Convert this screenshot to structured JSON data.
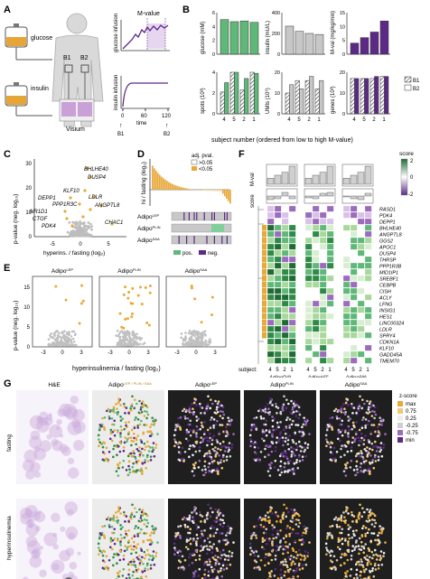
{
  "panel_letters": [
    "A",
    "B",
    "C",
    "D",
    "E",
    "F",
    "G"
  ],
  "colors": {
    "orange": "#e8a93a",
    "green": "#5fb878",
    "grey": "#c7c7c7",
    "purple": "#5c2a86",
    "light_purple": "#b98dd3",
    "light_green": "#cfe9c9",
    "dark_green": "#1f6b34",
    "body": "#d9d9d9",
    "bag_orange": "#e6a637"
  },
  "panel_a": {
    "glucose": "glucose",
    "insulin": "insulin",
    "b1": "B1",
    "b2": "B2",
    "visium": "Visium",
    "mvalue": "M-value",
    "glucose_infusion": "glucose infusion",
    "insulin_infusion": "insulin infusion",
    "time": "time",
    "t0": "0",
    "t60": "60",
    "t120": "120",
    "arrow_b1": "B1",
    "arrow_b2": "B2"
  },
  "panel_b": {
    "xlabel": "subject number (ordered from low to high M-value)",
    "subjects": [
      "4",
      "5",
      "2",
      "1"
    ],
    "legend": [
      "B1",
      "B2"
    ],
    "chart_data": [
      {
        "type": "bar",
        "ylabel": "glucose (mM)",
        "ticks": [
          "0",
          "2",
          "4",
          "6"
        ],
        "ylim": [
          0,
          6
        ],
        "values": [
          5.0,
          4.7,
          4.8,
          4.6
        ],
        "color": "#5fb878"
      },
      {
        "type": "bar",
        "ylabel": "insulin (mU/L)",
        "ticks": [
          "0",
          "200",
          "400"
        ],
        "ylim": [
          0,
          400
        ],
        "values": [
          270,
          220,
          200,
          190
        ],
        "color": "#c7c7c7"
      },
      {
        "type": "bar",
        "ylabel": "M-val (mg/kg/min)",
        "ticks": [
          "0",
          "5",
          "10",
          "15"
        ],
        "ylim": [
          0,
          15
        ],
        "values": [
          4,
          6,
          8,
          12
        ],
        "color": "#5c2a86"
      },
      {
        "type": "bar",
        "ylabel": "spots (10³)",
        "ticks": [
          "0",
          "2",
          "4"
        ],
        "ylim": [
          0,
          4
        ],
        "series": [
          {
            "name": "B1",
            "values": [
              2.1,
              4.0,
              2.3,
              4.0
            ]
          },
          {
            "name": "B2",
            "values": [
              3.0,
              4.0,
              3.4,
              3.9
            ]
          }
        ],
        "color": "#5fb878"
      },
      {
        "type": "bar",
        "ylabel": "UMIs (10⁶)",
        "ticks": [
          "0",
          "10",
          "20"
        ],
        "ylim": [
          0,
          20
        ],
        "series": [
          {
            "name": "B1",
            "values": [
              10,
              16,
              16,
              12
            ]
          },
          {
            "name": "B2",
            "values": [
              14,
              12,
              18,
              16
            ]
          }
        ],
        "color": "#c7c7c7"
      },
      {
        "type": "bar",
        "ylabel": "genes (10³)",
        "ticks": [
          "0",
          "10",
          "20"
        ],
        "ylim": [
          0,
          20
        ],
        "series": [
          {
            "name": "B1",
            "values": [
              17,
              17,
              17,
              18
            ]
          },
          {
            "name": "B2",
            "values": [
              17,
              17,
              18,
              18
            ]
          }
        ],
        "color": "#5c2a86"
      }
    ]
  },
  "panel_c": {
    "ylabel": "p-value (neg. log₁₀)",
    "xlabel": "hyperins. / fasting (log₂)",
    "xticks": [
      "-5",
      "0",
      "5"
    ],
    "yticks": [
      "0",
      "10",
      "20",
      "30"
    ],
    "genes": [
      "BHLHE40",
      "DUSP4",
      "KLF10",
      "LDLR",
      "DEPP1",
      "PPP1R3C",
      "ANGPTL8",
      "NR1D1",
      "CTGF",
      "PDK4",
      "CHAC1"
    ]
  },
  "panel_d": {
    "ylabel": "hi / fasting (log₂)",
    "legend_title": "adj. pval.",
    "legend": [
      ">0.05",
      "<0.05"
    ],
    "rows": [
      "Adipo^LEP",
      "Adipo^PLIN",
      "Adipo^SAA"
    ],
    "row_base": [
      "Adipo",
      "Adipo",
      "Adipo"
    ],
    "row_sup": [
      "LEP",
      "PLIN",
      "SAA"
    ],
    "pos": "pos.",
    "neg": "neg."
  },
  "panel_e": {
    "ylabel": "p-value (neg. log₁₀)",
    "xlabel": "hyperinsulinemia / fasting (log₂)",
    "titles_base": [
      "Adipo",
      "Adipo",
      "Adipo"
    ],
    "titles_sup": [
      "LEP",
      "PLIN",
      "SAA"
    ],
    "xticks": [
      "-3",
      "0",
      "3"
    ],
    "yticks": [
      "0",
      "5",
      "10",
      "15"
    ]
  },
  "panel_f": {
    "mval": "M-val",
    "score": "score",
    "legend_title": "score",
    "legend_ticks": [
      "2",
      "0",
      "-2"
    ],
    "genes": [
      "RASD1",
      "PDK4",
      "DEPP1",
      "BHLHE40",
      "ANGPTL8",
      "GGS2",
      "APOC1",
      "DUSP4",
      "THRSP",
      "PPP1R3B",
      "MID1IP1",
      "SREBF1",
      "CEBPB",
      "CISH",
      "ACLY",
      "LFNG",
      "INSIG1",
      "HES1",
      "LINC00324",
      "LDLR",
      "SPRY4",
      "CDKN1A",
      "KLF10",
      "GADD45A",
      "TMEM70"
    ],
    "subject_label": "subject:",
    "subjects": [
      "4",
      "5",
      "2",
      "1"
    ],
    "groups_sup": [
      "PLIN",
      "LEP",
      "SAA"
    ]
  },
  "panel_g": {
    "cols": [
      "H&E",
      "Adipo",
      "Adipo",
      "Adipo",
      "Adipo"
    ],
    "col_sups": [
      "",
      "LEP / PLIN / SAA",
      "LEP",
      "PLIN",
      "SAA"
    ],
    "rows": [
      "fasting",
      "hyperinsulinemia"
    ],
    "legend_title": "z-score",
    "legend_labels": [
      "max",
      "0.75",
      "0.25",
      "-0.25",
      "-0.75",
      "min"
    ]
  }
}
